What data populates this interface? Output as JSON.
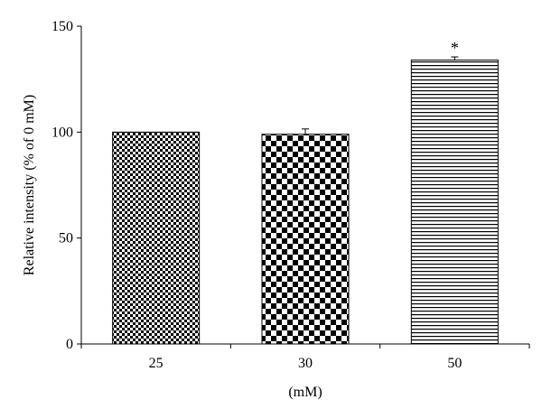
{
  "chart_data": {
    "type": "bar",
    "categories": [
      "25",
      "30",
      "50"
    ],
    "values": [
      100,
      99,
      134
    ],
    "errors": [
      0,
      2.5,
      1.5
    ],
    "patterns": [
      "fine-checker",
      "coarse-checker",
      "horizontal-lines"
    ],
    "annotations": [
      "",
      "",
      "*"
    ],
    "xlabel": "(mM)",
    "ylabel": "Relative intensity (% of 0 mM)",
    "ylim": [
      0,
      150
    ],
    "yticks": [
      0,
      50,
      100,
      150
    ],
    "grid": false
  }
}
